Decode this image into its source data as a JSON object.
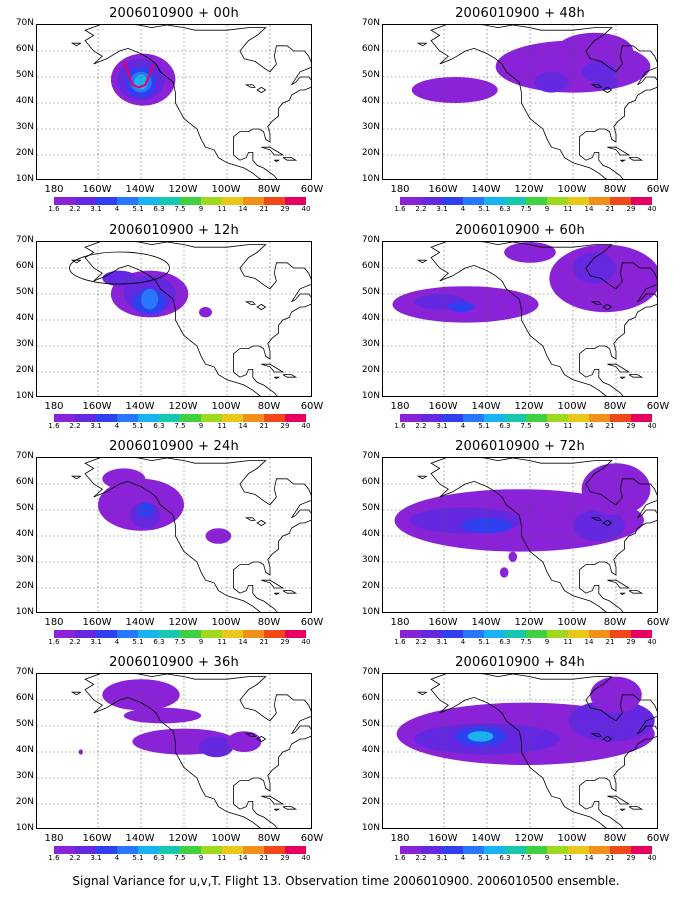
{
  "colors": {
    "scale": [
      "#8a22d8",
      "#6428e0",
      "#3040f0",
      "#2878ff",
      "#18b4f0",
      "#16c8b0",
      "#40d040",
      "#a0d820",
      "#e8c818",
      "#f09018",
      "#f04818",
      "#e80060"
    ],
    "coast": "#000000",
    "grid": "#555555"
  },
  "colorbar_labels": [
    "1.6",
    "2.2",
    "3.1",
    "4",
    "5.1",
    "6.3",
    "7.5",
    "9",
    "11",
    "14",
    "21",
    "29",
    "40"
  ],
  "y_axis_labels": [
    "70N",
    "60N",
    "50N",
    "40N",
    "30N",
    "20N",
    "10N"
  ],
  "x_axis_labels": [
    "180",
    "160W",
    "140W",
    "120W",
    "100W",
    "80W",
    "60W"
  ],
  "panels": [
    {
      "title": "2006010900 + 00h"
    },
    {
      "title": "2006010900 + 48h"
    },
    {
      "title": "2006010900 + 12h"
    },
    {
      "title": "2006010900 + 60h"
    },
    {
      "title": "2006010900 + 24h"
    },
    {
      "title": "2006010900 + 72h"
    },
    {
      "title": "2006010900 + 36h"
    },
    {
      "title": "2006010900 + 84h"
    }
  ],
  "caption": "Signal Variance for u,v,T. Flight 13. Observation time 2006010900. 2006010500 ensemble."
}
